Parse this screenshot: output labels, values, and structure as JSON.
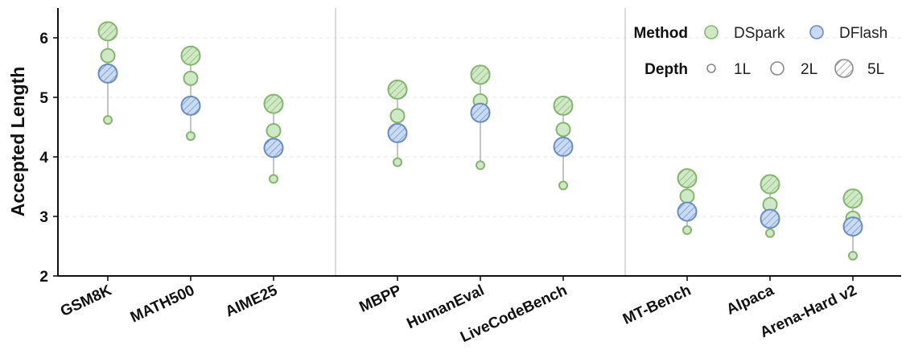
{
  "chart_data": {
    "type": "scatter",
    "title": "",
    "xlabel": "",
    "ylabel": "Accepted Length",
    "ylim": [
      2,
      6.5
    ],
    "yticks": [
      2,
      3,
      4,
      5,
      6
    ],
    "grid": "horizontal-dashed",
    "legend_position": "top-right",
    "categories": [
      "GSM8K",
      "MATH500",
      "AIME25",
      "MBPP",
      "HumanEval",
      "LiveCodeBench",
      "MT-Bench",
      "Alpaca",
      "Arena-Hard v2"
    ],
    "groups": [
      [
        0,
        1,
        2
      ],
      [
        3,
        4,
        5
      ],
      [
        6,
        7,
        8
      ]
    ],
    "series": [
      {
        "method": "DSpark",
        "depth": "1L",
        "values": [
          4.62,
          4.35,
          3.63,
          3.91,
          3.86,
          3.52,
          2.77,
          2.72,
          2.34
        ]
      },
      {
        "method": "DSpark",
        "depth": "2L",
        "values": [
          5.7,
          5.32,
          4.44,
          4.69,
          4.94,
          4.46,
          3.34,
          3.2,
          2.97
        ]
      },
      {
        "method": "DSpark",
        "depth": "5L",
        "values": [
          6.11,
          5.7,
          4.89,
          5.13,
          5.38,
          4.86,
          3.64,
          3.54,
          3.3
        ]
      },
      {
        "method": "DFlash",
        "depth": "5L",
        "values": [
          5.4,
          4.86,
          4.15,
          4.4,
          4.74,
          4.17,
          3.08,
          2.96,
          2.83
        ]
      }
    ],
    "legend": {
      "method_title": "Method",
      "depth_title": "Depth",
      "methods": [
        {
          "name": "DSpark",
          "fill": "#cfe8c6",
          "stroke": "#86b56f"
        },
        {
          "name": "DFlash",
          "fill": "#c9dbf2",
          "stroke": "#6b8cc2"
        }
      ],
      "depths": [
        "1L",
        "2L",
        "5L"
      ]
    },
    "colors": {
      "dspark_fill": "#cfe8c6",
      "dspark_stroke": "#86b56f",
      "dflash_fill": "#c9dbf2",
      "dflash_stroke": "#6b8cc2",
      "connector": "#c4c4c4",
      "separator": "#c8c8c8",
      "grid": "#e6e6e6"
    }
  }
}
